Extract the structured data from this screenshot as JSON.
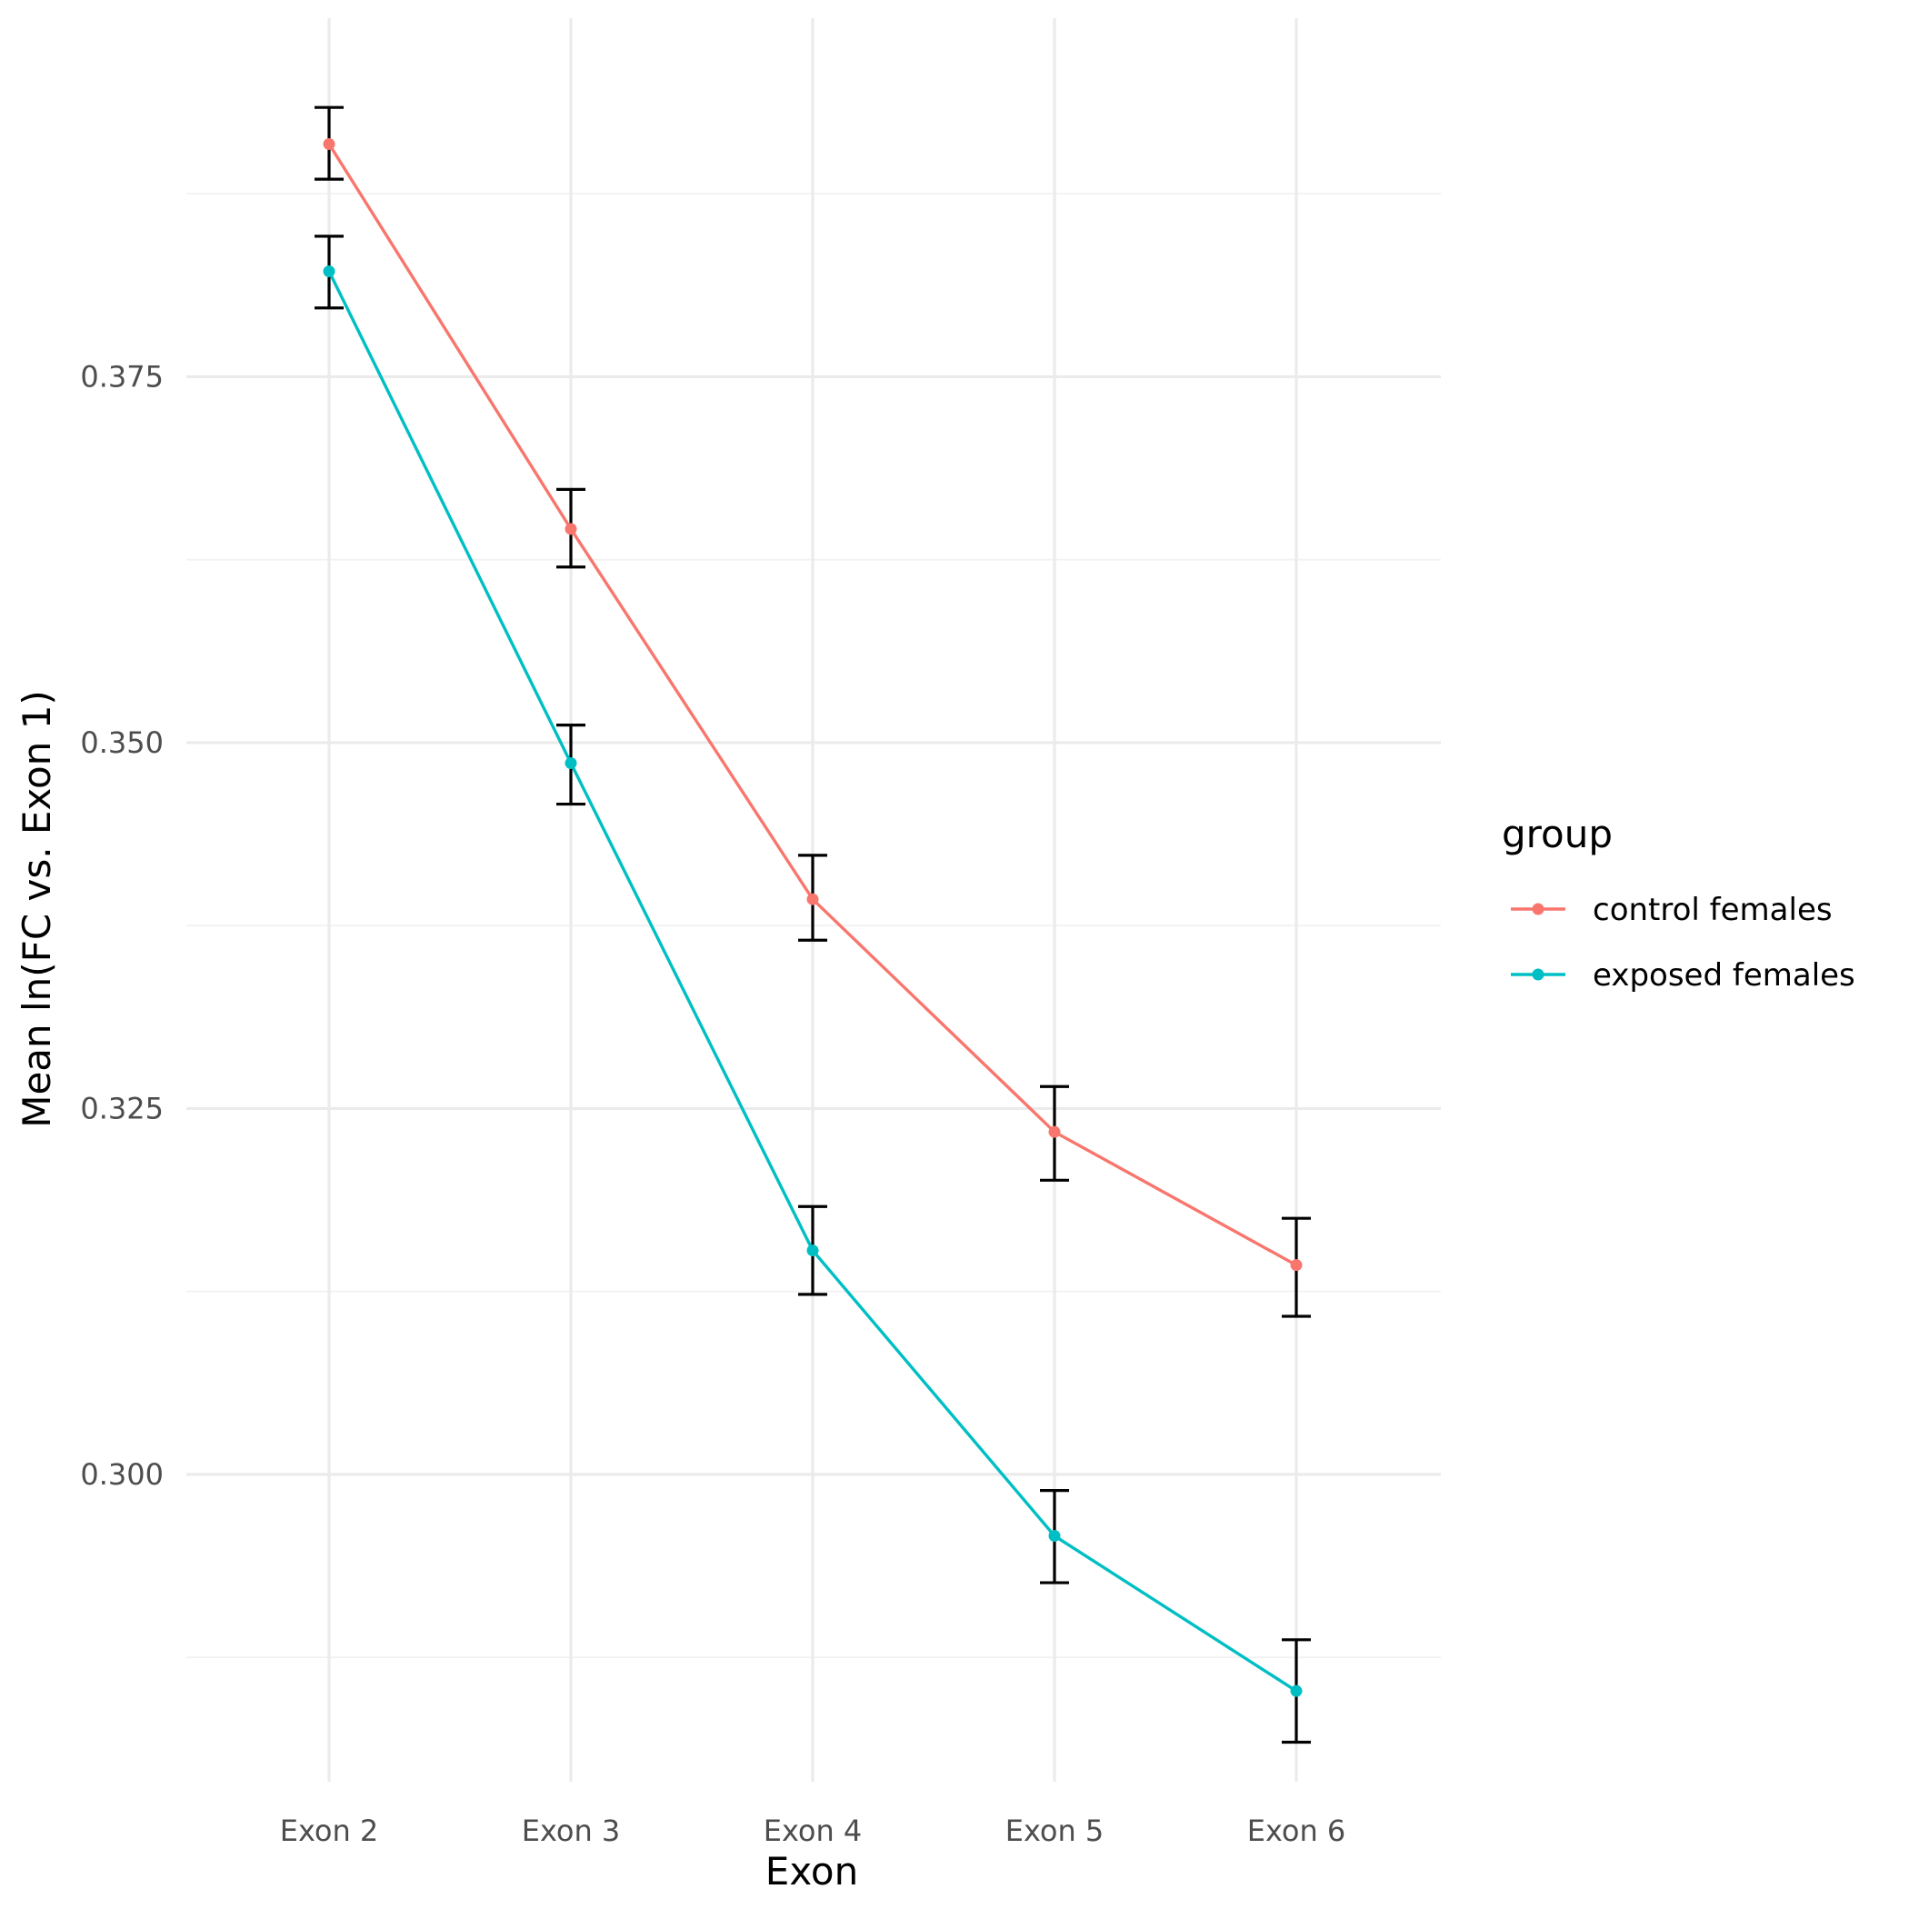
{
  "chart_data": {
    "type": "line",
    "xlabel": "Exon",
    "ylabel": "Mean ln(FC vs. Exon 1)",
    "categories": [
      "Exon 2",
      "Exon 3",
      "Exon 4",
      "Exon 5",
      "Exon 6"
    ],
    "ylim": [
      0.279,
      0.3995
    ],
    "yticks": [
      0.3,
      0.325,
      0.35,
      0.375
    ],
    "ytick_labels": [
      "0.300",
      "0.325",
      "0.350",
      "0.375"
    ],
    "grid": true,
    "legend": {
      "title": "group",
      "position": "right"
    },
    "series": [
      {
        "name": "control females",
        "color": "#F8766D",
        "values": [
          0.3909,
          0.3646,
          0.3393,
          0.3234,
          0.3143
        ],
        "error_low": [
          0.3885,
          0.362,
          0.3365,
          0.3201,
          0.3108
        ],
        "error_high": [
          0.3934,
          0.3673,
          0.3423,
          0.3265,
          0.3175
        ]
      },
      {
        "name": "exposed females",
        "color": "#00BFC4",
        "values": [
          0.3822,
          0.3486,
          0.3153,
          0.2958,
          0.2852
        ],
        "error_low": [
          0.3797,
          0.3458,
          0.3123,
          0.2926,
          0.2817
        ],
        "error_high": [
          0.3846,
          0.3512,
          0.3183,
          0.2989,
          0.2887
        ]
      }
    ]
  }
}
